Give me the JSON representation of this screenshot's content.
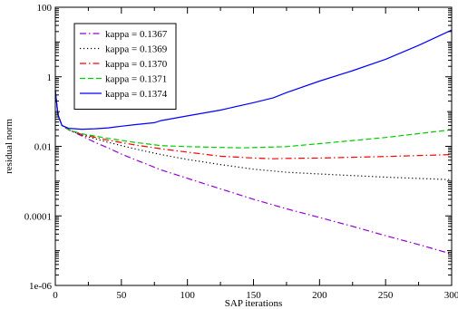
{
  "chart_data": {
    "type": "line",
    "xlabel": "SAP iterations",
    "ylabel": "residual norm",
    "xlim": [
      0,
      300
    ],
    "ylim": [
      1e-06,
      100
    ],
    "yscale": "log",
    "x_ticks": [
      "0",
      "50",
      "100",
      "150",
      "200",
      "250",
      "300"
    ],
    "y_ticks": [
      "1e-06",
      "0.0001",
      "0.01",
      "1",
      "100"
    ],
    "grid": false,
    "legend_position": "top-left",
    "series": [
      {
        "name": "kappa = 0.1367",
        "color": "#9400D3",
        "dash": "dash-dot",
        "x": [
          0,
          2,
          5,
          10,
          20,
          30,
          40,
          50,
          60,
          70,
          80,
          100,
          125,
          150,
          175,
          200,
          225,
          250,
          275,
          300
        ],
        "y": [
          0.4,
          0.08,
          0.04,
          0.03,
          0.02,
          0.013,
          0.009,
          0.006,
          0.0042,
          0.003,
          0.0021,
          0.0012,
          0.0006,
          0.0003,
          0.00016,
          9e-05,
          5e-05,
          2.7e-05,
          1.5e-05,
          8e-06
        ]
      },
      {
        "name": "kappa = 0.1369",
        "color": "#000000",
        "dash": "dotted",
        "x": [
          0,
          2,
          5,
          10,
          20,
          40,
          60,
          80,
          100,
          125,
          150,
          175,
          200,
          250,
          300
        ],
        "y": [
          0.4,
          0.08,
          0.04,
          0.03,
          0.021,
          0.013,
          0.0085,
          0.0058,
          0.0042,
          0.003,
          0.0022,
          0.0018,
          0.0016,
          0.0013,
          0.0011
        ]
      },
      {
        "name": "kappa = 0.1370",
        "color": "#FF0000",
        "dash": "dash-dot",
        "x": [
          0,
          2,
          5,
          10,
          20,
          40,
          60,
          80,
          100,
          125,
          150,
          165,
          175,
          200,
          250,
          300
        ],
        "y": [
          0.4,
          0.08,
          0.04,
          0.03,
          0.022,
          0.015,
          0.011,
          0.0085,
          0.0068,
          0.0052,
          0.0046,
          0.0044,
          0.0045,
          0.0046,
          0.0051,
          0.0058
        ]
      },
      {
        "name": "kappa = 0.1371",
        "color": "#00CC00",
        "dash": "dashed",
        "x": [
          0,
          2,
          5,
          10,
          20,
          40,
          60,
          80,
          100,
          125,
          140,
          150,
          175,
          200,
          250,
          300
        ],
        "y": [
          0.4,
          0.08,
          0.04,
          0.03,
          0.023,
          0.017,
          0.013,
          0.0105,
          0.0098,
          0.0093,
          0.0091,
          0.0092,
          0.0098,
          0.012,
          0.018,
          0.03
        ]
      },
      {
        "name": "kappa = 0.1374",
        "color": "#0000FF",
        "dash": "solid",
        "x": [
          0,
          2,
          5,
          10,
          20,
          30,
          40,
          50,
          60,
          75,
          80,
          100,
          125,
          150,
          165,
          175,
          200,
          225,
          250,
          275,
          300
        ],
        "y": [
          0.4,
          0.08,
          0.04,
          0.033,
          0.031,
          0.032,
          0.034,
          0.038,
          0.042,
          0.048,
          0.055,
          0.075,
          0.11,
          0.18,
          0.25,
          0.35,
          0.75,
          1.5,
          3.2,
          8,
          22
        ]
      }
    ]
  }
}
